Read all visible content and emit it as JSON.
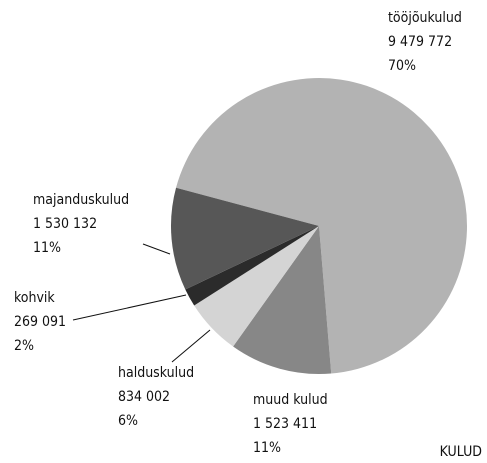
{
  "chart_data": {
    "type": "pie",
    "title": "KULUD",
    "categories": [
      "tööjõukulud",
      "muud kulud",
      "halduskulud",
      "kohvik",
      "majanduskulud"
    ],
    "values": [
      9479772,
      1523411,
      834002,
      269091,
      1530132
    ],
    "value_labels": [
      "9 479 772",
      "1 523 411",
      "834 002",
      "269 091",
      "1 530 132"
    ],
    "percents": [
      70,
      11,
      6,
      2,
      11
    ],
    "percent_labels": [
      "70%",
      "11%",
      "6%",
      "2%",
      "11%"
    ],
    "colors": [
      "#b3b3b3",
      "#878787",
      "#d4d4d4",
      "#2b2b2b",
      "#575757"
    ]
  }
}
